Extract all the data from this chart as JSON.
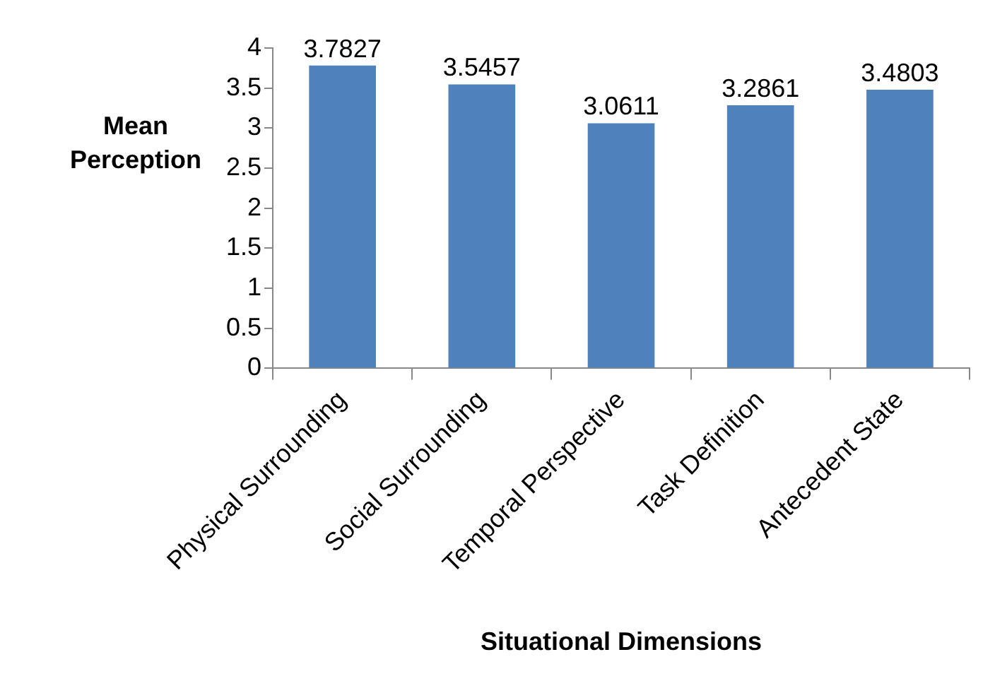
{
  "chart_data": {
    "type": "bar",
    "categories": [
      "Physical Surrounding",
      "Social Surrounding",
      "Temporal Perspective",
      "Task Definition",
      "Antecedent State"
    ],
    "values": [
      3.7827,
      3.5457,
      3.0611,
      3.2861,
      3.4803
    ],
    "color": "#4f81bd",
    "xlabel": "Situational Dimensions",
    "ylabel": "Mean Perception",
    "ylim": [
      0,
      4
    ],
    "yticks": [
      0,
      0.5,
      1,
      1.5,
      2,
      2.5,
      3,
      3.5,
      4
    ],
    "data_labels": true,
    "grid": false,
    "legend": false
  }
}
